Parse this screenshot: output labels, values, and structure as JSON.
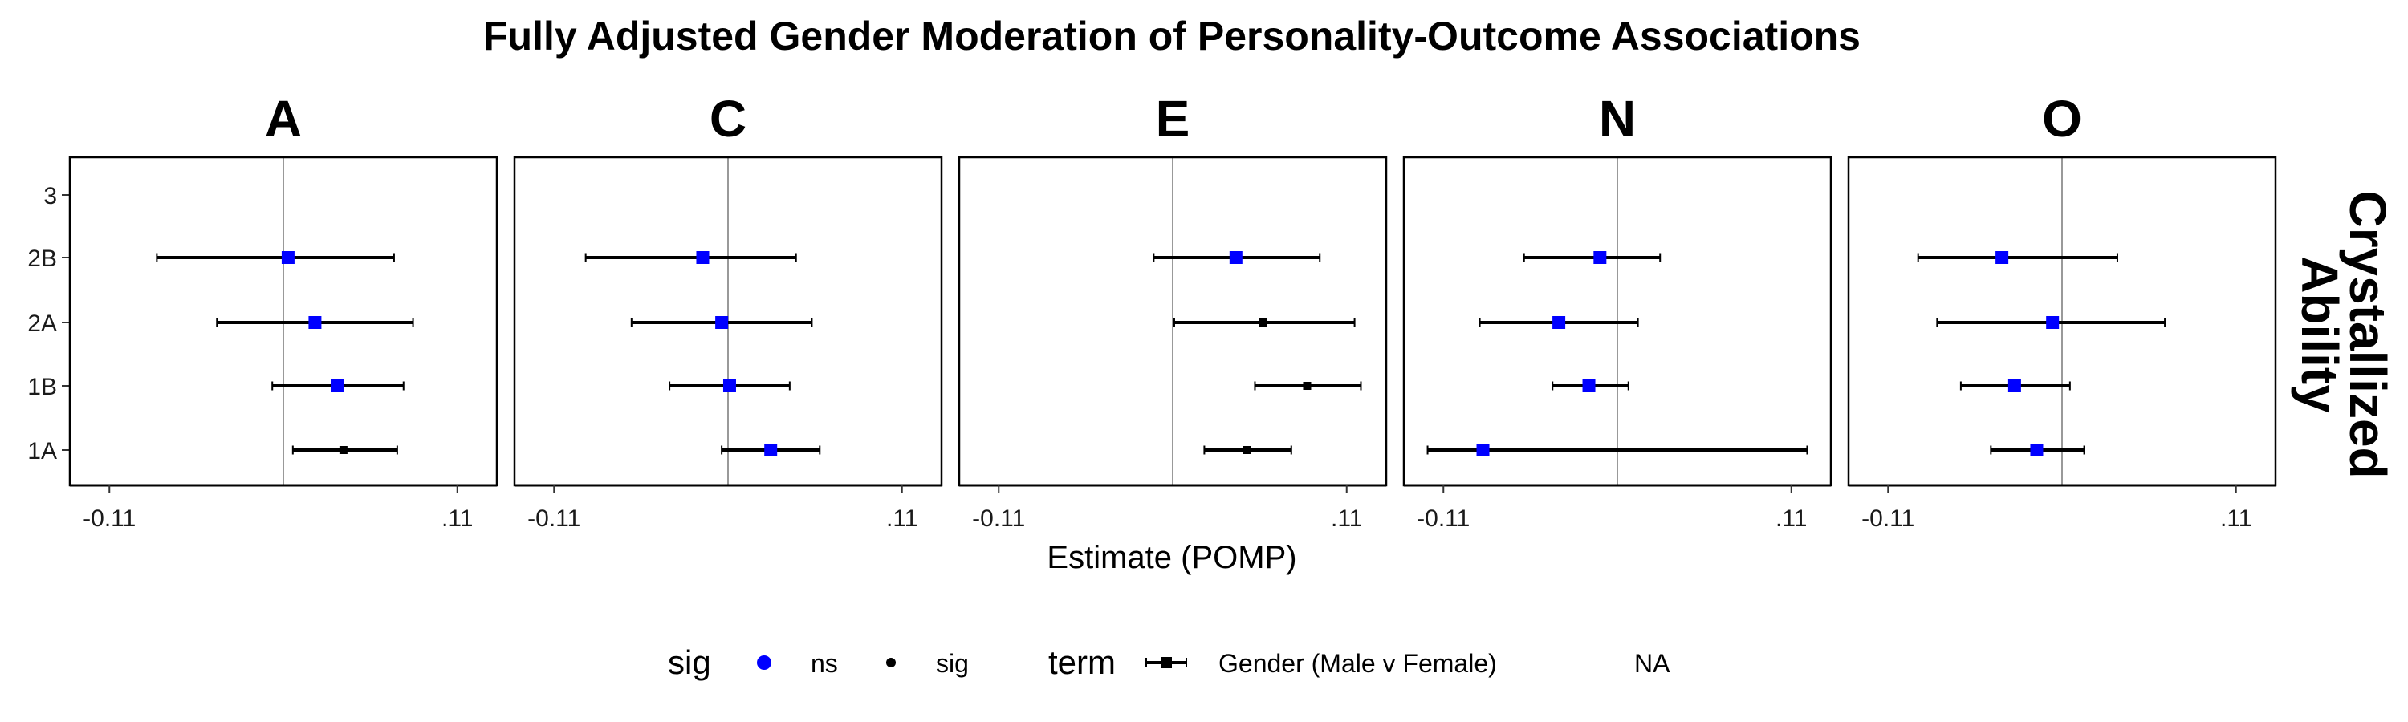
{
  "chart_data": {
    "type": "forest",
    "title": "Fully Adjusted Gender Moderation of Personality-Outcome Associations",
    "facet_row_label": [
      "Crystallized",
      "Ability"
    ],
    "xlabel": "Estimate (POMP)",
    "x_ticks": [
      -0.11,
      0.11
    ],
    "x_tick_labels": [
      "-0.11",
      ".11"
    ],
    "xlim": [
      -0.135,
      0.135
    ],
    "reference_line": 0,
    "y_categories": [
      "3",
      "2B",
      "2A",
      "1B",
      "1A"
    ],
    "panels": [
      {
        "name": "A",
        "points": [
          {
            "category": "2B",
            "estimate": 0.003,
            "lower": -0.08,
            "upper": 0.07,
            "sig": "ns"
          },
          {
            "category": "2A",
            "estimate": 0.02,
            "lower": -0.042,
            "upper": 0.082,
            "sig": "ns"
          },
          {
            "category": "1B",
            "estimate": 0.034,
            "lower": -0.007,
            "upper": 0.076,
            "sig": "ns"
          },
          {
            "category": "1A",
            "estimate": 0.038,
            "lower": 0.006,
            "upper": 0.072,
            "sig": "sig"
          }
        ]
      },
      {
        "name": "C",
        "points": [
          {
            "category": "2B",
            "estimate": -0.016,
            "lower": -0.09,
            "upper": 0.043,
            "sig": "ns"
          },
          {
            "category": "2A",
            "estimate": -0.004,
            "lower": -0.061,
            "upper": 0.053,
            "sig": "ns"
          },
          {
            "category": "1B",
            "estimate": 0.001,
            "lower": -0.037,
            "upper": 0.039,
            "sig": "ns"
          },
          {
            "category": "1A",
            "estimate": 0.027,
            "lower": -0.004,
            "upper": 0.058,
            "sig": "ns"
          }
        ]
      },
      {
        "name": "E",
        "points": [
          {
            "category": "2B",
            "estimate": 0.04,
            "lower": -0.012,
            "upper": 0.093,
            "sig": "ns"
          },
          {
            "category": "2A",
            "estimate": 0.057,
            "lower": 0.001,
            "upper": 0.115,
            "sig": "sig"
          },
          {
            "category": "1B",
            "estimate": 0.085,
            "lower": 0.052,
            "upper": 0.119,
            "sig": "sig"
          },
          {
            "category": "1A",
            "estimate": 0.047,
            "lower": 0.02,
            "upper": 0.075,
            "sig": "sig"
          }
        ]
      },
      {
        "name": "N",
        "points": [
          {
            "category": "2B",
            "estimate": -0.011,
            "lower": -0.059,
            "upper": 0.027,
            "sig": "ns"
          },
          {
            "category": "2A",
            "estimate": -0.037,
            "lower": -0.087,
            "upper": 0.013,
            "sig": "ns"
          },
          {
            "category": "1B",
            "estimate": -0.018,
            "lower": -0.041,
            "upper": 0.007,
            "sig": "ns"
          },
          {
            "category": "1A",
            "estimate": -0.085,
            "lower": -0.12,
            "upper": 0.12,
            "sig": "ns"
          }
        ]
      },
      {
        "name": "O",
        "points": [
          {
            "category": "2B",
            "estimate": -0.038,
            "lower": -0.091,
            "upper": 0.035,
            "sig": "ns"
          },
          {
            "category": "2A",
            "estimate": -0.006,
            "lower": -0.079,
            "upper": 0.065,
            "sig": "ns"
          },
          {
            "category": "1B",
            "estimate": -0.03,
            "lower": -0.064,
            "upper": 0.005,
            "sig": "ns"
          },
          {
            "category": "1A",
            "estimate": -0.016,
            "lower": -0.045,
            "upper": 0.014,
            "sig": "ns"
          }
        ]
      }
    ],
    "legend": {
      "placement": "bottom",
      "sig_title": "sig",
      "sig_items": [
        {
          "label": "ns",
          "color": "#0000ff"
        },
        {
          "label": "sig",
          "color": "#000000"
        }
      ],
      "term_title": "term",
      "term_items": [
        "Gender (Male v Female)",
        "NA"
      ]
    }
  },
  "colors": {
    "ns": "#0000ff",
    "sig": "#000000",
    "reference_line": "#999999",
    "errorbar": "#000000"
  }
}
